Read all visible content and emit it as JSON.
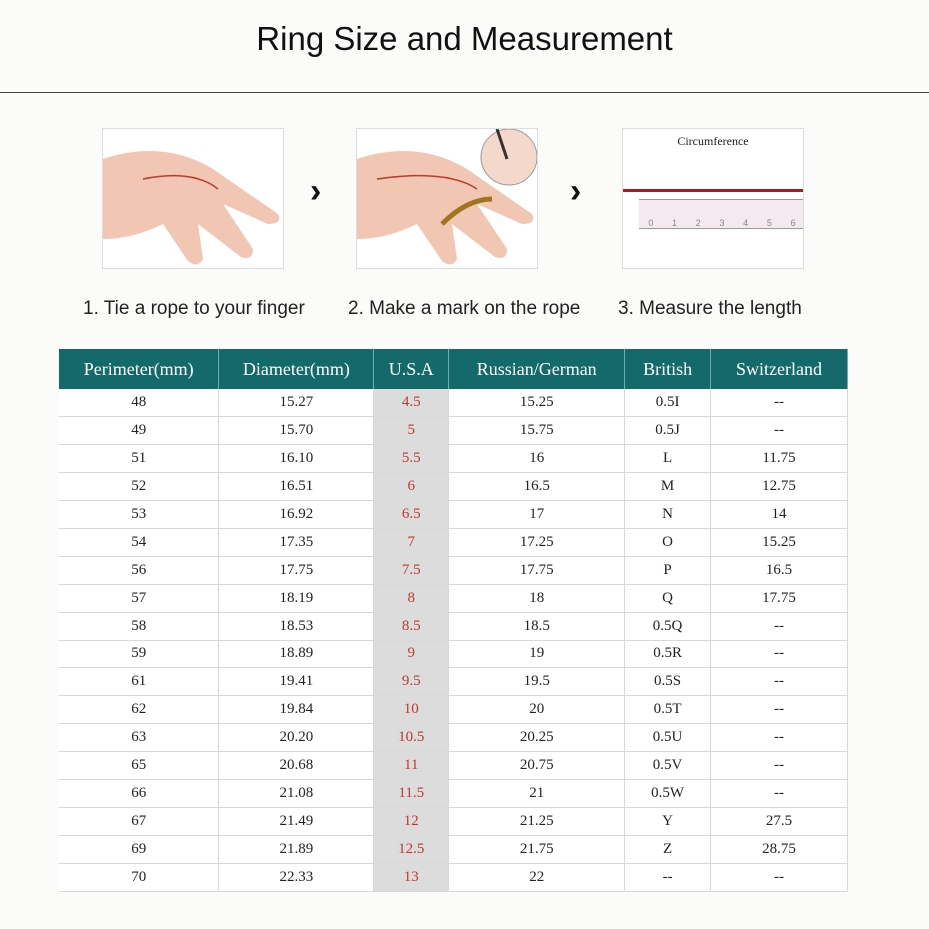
{
  "title": "Ring Size and Measurement",
  "steps": [
    {
      "caption": "1. Tie a rope to your finger",
      "icon": "hand-with-rope-icon"
    },
    {
      "caption": "2. Make a mark on the rope",
      "icon": "hand-marking-rope-icon"
    },
    {
      "caption": "3. Measure the length",
      "icon": "ruler-icon"
    }
  ],
  "circumference_label": "Circumference",
  "ruler_numbers": [
    "0",
    "1",
    "2",
    "3",
    "4",
    "5",
    "6"
  ],
  "colors": {
    "header": "#14696b",
    "usa_text": "#c0392b",
    "usa_bg": "#dcdcdc"
  },
  "table": {
    "headers": [
      "Perimeter(mm)",
      "Diameter(mm)",
      "U.S.A",
      "Russian/German",
      "British",
      "Switzerland"
    ],
    "rows": [
      [
        "48",
        "15.27",
        "4.5",
        "15.25",
        "0.5I",
        "--"
      ],
      [
        "49",
        "15.70",
        "5",
        "15.75",
        "0.5J",
        "--"
      ],
      [
        "51",
        "16.10",
        "5.5",
        "16",
        "L",
        "11.75"
      ],
      [
        "52",
        "16.51",
        "6",
        "16.5",
        "M",
        "12.75"
      ],
      [
        "53",
        "16.92",
        "6.5",
        "17",
        "N",
        "14"
      ],
      [
        "54",
        "17.35",
        "7",
        "17.25",
        "O",
        "15.25"
      ],
      [
        "56",
        "17.75",
        "7.5",
        "17.75",
        "P",
        "16.5"
      ],
      [
        "57",
        "18.19",
        "8",
        "18",
        "Q",
        "17.75"
      ],
      [
        "58",
        "18.53",
        "8.5",
        "18.5",
        "0.5Q",
        "--"
      ],
      [
        "59",
        "18.89",
        "9",
        "19",
        "0.5R",
        "--"
      ],
      [
        "61",
        "19.41",
        "9.5",
        "19.5",
        "0.5S",
        "--"
      ],
      [
        "62",
        "19.84",
        "10",
        "20",
        "0.5T",
        "--"
      ],
      [
        "63",
        "20.20",
        "10.5",
        "20.25",
        "0.5U",
        "--"
      ],
      [
        "65",
        "20.68",
        "11",
        "20.75",
        "0.5V",
        "--"
      ],
      [
        "66",
        "21.08",
        "11.5",
        "21",
        "0.5W",
        "--"
      ],
      [
        "67",
        "21.49",
        "12",
        "21.25",
        "Y",
        "27.5"
      ],
      [
        "69",
        "21.89",
        "12.5",
        "21.75",
        "Z",
        "28.75"
      ],
      [
        "70",
        "22.33",
        "13",
        "22",
        "--",
        "--"
      ]
    ]
  }
}
